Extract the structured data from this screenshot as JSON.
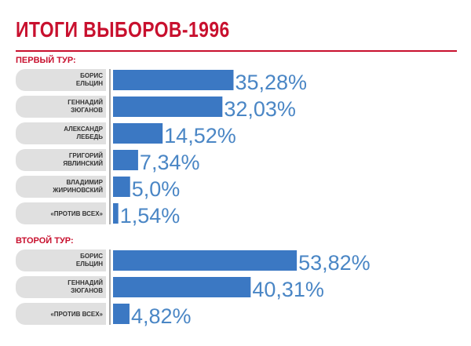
{
  "title": "ИТОГИ ВЫБОРОВ-1996",
  "colors": {
    "title": "#c8102e",
    "bar": "#3b78c3",
    "value_text": "#4a86c5",
    "label_box": "#e0e0e0"
  },
  "chart_data": {
    "type": "bar",
    "orientation": "horizontal",
    "value_unit": "%",
    "groups": [
      {
        "name": "ПЕРВЫЙ ТУР:",
        "items": [
          {
            "label": [
              "БОРИС",
              "ЕЛЬЦИН"
            ],
            "value": 35.28,
            "display": "35,28%"
          },
          {
            "label": [
              "ГЕННАДИЙ",
              "ЗЮГАНОВ"
            ],
            "value": 32.03,
            "display": "32,03%"
          },
          {
            "label": [
              "АЛЕКСАНДР",
              "ЛЕБЕДЬ"
            ],
            "value": 14.52,
            "display": "14,52%"
          },
          {
            "label": [
              "ГРИГОРИЙ",
              "ЯВЛИНСКИЙ"
            ],
            "value": 7.34,
            "display": "7,34%"
          },
          {
            "label": [
              "ВЛАДИМИР",
              "ЖИРИНОВСКИЙ"
            ],
            "value": 5.0,
            "display": "5,0%"
          },
          {
            "label": [
              "«ПРОТИВ ВСЕХ»"
            ],
            "value": 1.54,
            "display": "1,54%"
          }
        ]
      },
      {
        "name": "ВТОРОЙ ТУР:",
        "items": [
          {
            "label": [
              "БОРИС",
              "ЕЛЬЦИН"
            ],
            "value": 53.82,
            "display": "53,82%"
          },
          {
            "label": [
              "ГЕННАДИЙ",
              "ЗЮГАНОВ"
            ],
            "value": 40.31,
            "display": "40,31%"
          },
          {
            "label": [
              "«ПРОТИВ ВСЕХ»"
            ],
            "value": 4.82,
            "display": "4,82%"
          }
        ]
      }
    ]
  }
}
